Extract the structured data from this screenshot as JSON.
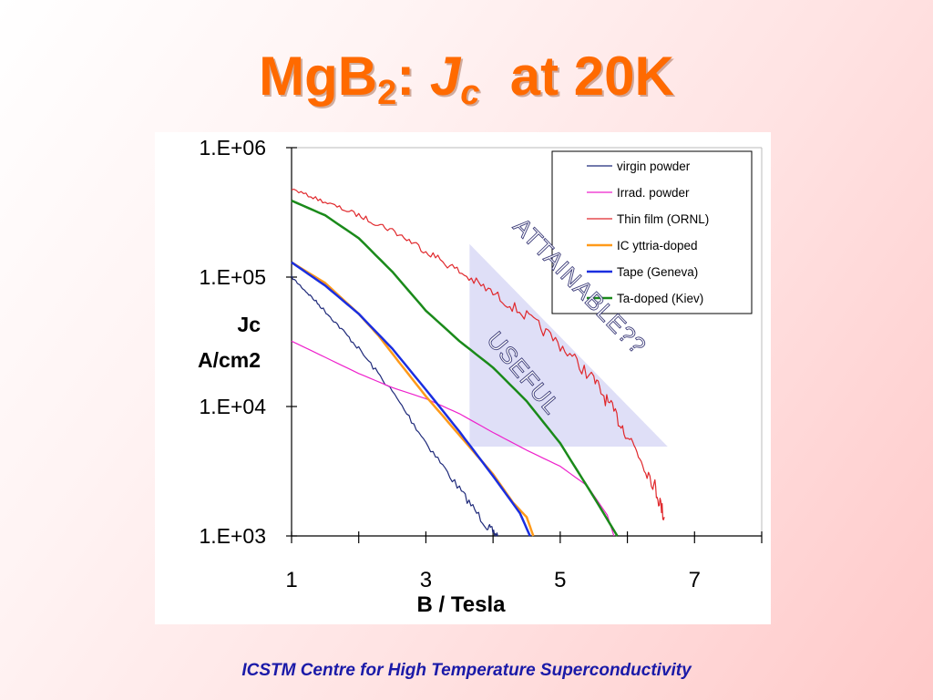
{
  "slide": {
    "title_main": "MgB",
    "title_sub": "2",
    "title_colon": ":",
    "title_j": "J",
    "title_jsub": "c",
    "title_rest": "at 20K",
    "footer": "ICSTM Centre for High Temperature Superconductivity"
  },
  "colors": {
    "title": "#ff6a00",
    "footer": "#1a1aa8",
    "triangle": "#dcdcf6"
  },
  "chart_data": {
    "type": "line",
    "y_scale": "log",
    "xlim": [
      1,
      8
    ],
    "ylim": [
      1000,
      1000000
    ],
    "x_ticks": [
      1,
      2,
      3,
      4,
      5,
      6,
      7,
      8
    ],
    "x_tick_labels": [
      "1",
      "3",
      "5",
      "7"
    ],
    "x_tick_label_values": [
      1,
      3,
      5,
      7
    ],
    "y_tick_values": [
      1000,
      10000,
      100000,
      1000000
    ],
    "y_tick_labels": [
      "1.E+03",
      "1.E+04",
      "1.E+05",
      "1.E+06"
    ],
    "ylabel_line1": "Jc",
    "ylabel_line2": "A/cm2",
    "xlabel_bold": "B",
    "xlabel_rest": " / Tesla",
    "legend_position": "top-right",
    "annotations": {
      "attainable": "ATTAINABLE??",
      "useful": "USEFUL"
    },
    "attainable_region": [
      [
        3.65,
        180000
      ],
      [
        6.6,
        4900
      ],
      [
        3.65,
        4900
      ]
    ],
    "series": [
      {
        "name": "virgin powder",
        "color": "#1f2a7a",
        "width": 1.2,
        "noisy": true,
        "x": [
          1.0,
          1.3,
          1.6,
          2.0,
          2.5,
          3.0,
          3.5,
          3.9,
          4.07
        ],
        "y": [
          100000,
          70000,
          48000,
          28000,
          13000,
          5300,
          2300,
          1200,
          1000
        ]
      },
      {
        "name": "Irrad. powder",
        "color": "#ee22cc",
        "width": 1.2,
        "x": [
          1.0,
          1.5,
          2.0,
          2.5,
          3.0,
          3.5,
          4.0,
          4.5,
          5.0,
          5.4,
          5.7,
          5.8
        ],
        "y": [
          32000,
          24000,
          18000,
          14000,
          11500,
          8800,
          6300,
          4600,
          3450,
          2450,
          1450,
          1000
        ]
      },
      {
        "name": "Thin film (ORNL)",
        "color": "#e0282c",
        "width": 1.2,
        "noisy": true,
        "x": [
          1.0,
          1.5,
          2.0,
          2.5,
          3.0,
          3.5,
          4.0,
          4.5,
          5.0,
          5.5,
          5.8,
          6.1,
          6.4,
          6.55
        ],
        "y": [
          480000,
          380000,
          300000,
          230000,
          160000,
          110000,
          75000,
          50000,
          30000,
          16000,
          9000,
          5000,
          2500,
          1400
        ]
      },
      {
        "name": "IC yttria-doped",
        "color": "#ff9a1a",
        "width": 2.5,
        "x": [
          1.0,
          1.5,
          2.0,
          2.3,
          2.6,
          3.0,
          3.5,
          4.0,
          4.3,
          4.5,
          4.6
        ],
        "y": [
          130000,
          90000,
          52000,
          35000,
          22000,
          12000,
          6000,
          3000,
          1800,
          1400,
          1000
        ]
      },
      {
        "name": "Tape (Geneva)",
        "color": "#1a2ee0",
        "width": 2.5,
        "x": [
          1.0,
          1.5,
          2.0,
          2.5,
          3.0,
          3.5,
          4.0,
          4.4,
          4.55
        ],
        "y": [
          130000,
          86000,
          52000,
          28000,
          13500,
          6400,
          2900,
          1500,
          1000
        ]
      },
      {
        "name": "Ta-doped (Kiev)",
        "color": "#1a8a1a",
        "width": 2.5,
        "x": [
          1.0,
          1.5,
          2.0,
          2.5,
          3.0,
          3.5,
          4.0,
          4.5,
          5.0,
          5.5,
          5.85
        ],
        "y": [
          390000,
          300000,
          200000,
          110000,
          55000,
          32000,
          20000,
          11000,
          5200,
          2000,
          1000
        ]
      }
    ]
  }
}
